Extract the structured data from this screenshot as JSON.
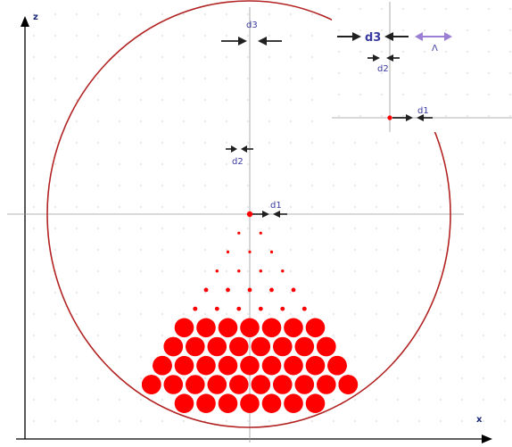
{
  "axes": {
    "x_label": "x",
    "z_label": "z"
  },
  "labels": {
    "d1": "d1",
    "d2": "d2",
    "d3": "d3"
  },
  "inset": {
    "d1": "d1",
    "d2": "d2",
    "d3": "d3",
    "lambda": "Λ"
  },
  "colors": {
    "hole": "#ff0000",
    "cladding": "#b22222",
    "axis": "#000000",
    "guide": "#9a9a9a",
    "arrow": "#202020",
    "lambda_arrow": "#9b7fd4",
    "label": "#3a3aa0"
  },
  "lattice": {
    "rings": 10,
    "pitch_units": 1,
    "inner_core_rings": 3,
    "middle_rings": 5
  }
}
